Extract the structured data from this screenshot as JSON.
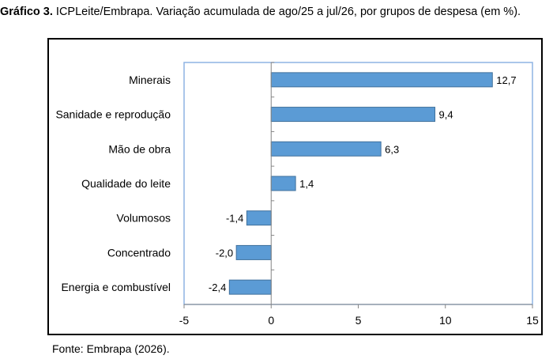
{
  "caption": {
    "lead": "Gráfico 3.",
    "text": "ICPLeite/Embrapa. Variação acumulada de ago/25 a jul/26, por grupos de despesa (em %)."
  },
  "source": "Fonte: Embrapa (2026).",
  "chart_data": {
    "type": "bar",
    "orientation": "horizontal",
    "categories": [
      "Minerais",
      "Sanidade e reprodução",
      "Mão de obra",
      "Qualidade do leite",
      "Volumosos",
      "Concentrado",
      "Energia e combustível"
    ],
    "values": [
      12.7,
      9.4,
      6.3,
      1.4,
      -1.4,
      -2.0,
      -2.4
    ],
    "value_labels": [
      "12,7",
      "9,4",
      "6,3",
      "1,4",
      "-1,4",
      "-2,0",
      "-2,4"
    ],
    "xlim": [
      -5,
      15
    ],
    "xticks": [
      -5,
      0,
      5,
      10,
      15
    ],
    "xtick_labels": [
      "-5",
      "0",
      "5",
      "10",
      "15"
    ],
    "grid": false,
    "bar_color": "#5B9BD5",
    "plot_border_color": "#8EB4E3"
  }
}
